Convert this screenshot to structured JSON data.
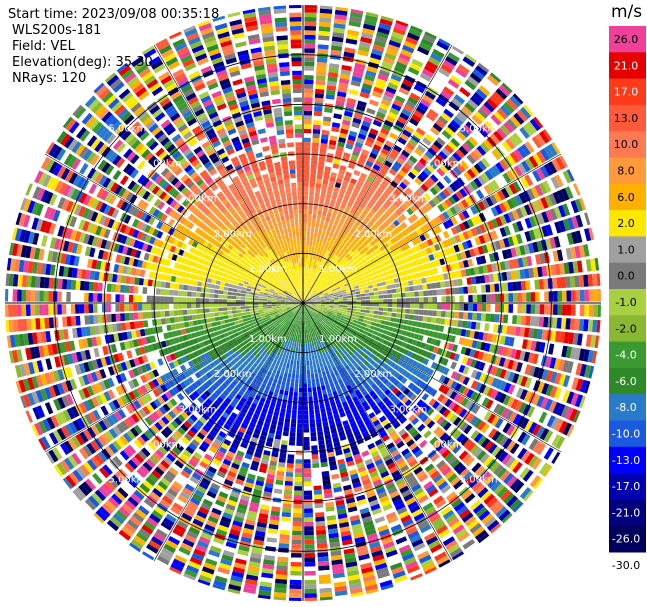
{
  "info": {
    "start_time": "Start time: 2023/09/08 00:35:18",
    "radar_name": "WLS200s-181",
    "field": "Field: VEL",
    "elevation": "Elevation(deg): 35.30",
    "nrays": "NRays: 120"
  },
  "chart_data": {
    "type": "heatmap",
    "projection": "polar-ppi",
    "field": "VEL",
    "units": "m/s",
    "nrays": 120,
    "range_rings_km": [
      1.0,
      2.0,
      3.0,
      4.0,
      5.0
    ],
    "range_ring_labels": [
      "1.00km",
      "2.00km",
      "3.00km",
      "4.00km",
      "5.00km"
    ],
    "max_range_km": 6.0,
    "clean_range_km": 3.2,
    "description_of_pattern": {
      "north": "positive (orange/red), radial velocity rising with range",
      "south": "negative (blue), radial velocity falling with range",
      "east_west": "near zero (yellow/green/grey)",
      "beyond_clean_range": "noise"
    },
    "colorbar": {
      "unit_label": "m/s",
      "bins": [
        {
          "label": "26.0",
          "color": "#f0409a"
        },
        {
          "label": "21.0",
          "color": "#e60000"
        },
        {
          "label": "17.0",
          "color": "#ff3a1a"
        },
        {
          "label": "13.0",
          "color": "#ff5a3a"
        },
        {
          "label": "10.0",
          "color": "#ff7a50"
        },
        {
          "label": "8.0",
          "color": "#ff9a3a"
        },
        {
          "label": "6.0",
          "color": "#ffb000"
        },
        {
          "label": "2.0",
          "color": "#ffe800"
        },
        {
          "label": "1.0",
          "color": "#a0a0a0"
        },
        {
          "label": "0.0",
          "color": "#7a7a7a"
        },
        {
          "label": "-1.0",
          "color": "#a8d040"
        },
        {
          "label": "-2.0",
          "color": "#8ab832"
        },
        {
          "label": "-4.0",
          "color": "#3a9a30"
        },
        {
          "label": "-6.0",
          "color": "#2e8a28"
        },
        {
          "label": "-8.0",
          "color": "#2a7acc"
        },
        {
          "label": "-10.0",
          "color": "#1a5ae0"
        },
        {
          "label": "-13.0",
          "color": "#0000ff"
        },
        {
          "label": "-17.0",
          "color": "#0000b0"
        },
        {
          "label": "-21.0",
          "color": "#000080"
        },
        {
          "label": "-26.0",
          "color": "#00005c"
        },
        {
          "label": "-30.0",
          "color": ""
        }
      ]
    }
  }
}
